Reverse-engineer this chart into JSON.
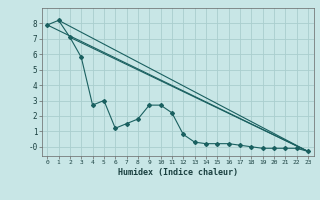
{
  "xlabel": "Humidex (Indice chaleur)",
  "ylabel": "",
  "background_color": "#c8e6e6",
  "grid_color": "#aacece",
  "line_color": "#1a6060",
  "xlim": [
    -0.5,
    23.5
  ],
  "ylim": [
    -0.6,
    9.0
  ],
  "yticks": [
    0,
    1,
    2,
    3,
    4,
    5,
    6,
    7,
    8
  ],
  "ytick_labels": [
    "-0",
    "1",
    "2",
    "3",
    "4",
    "5",
    "6",
    "7",
    "8"
  ],
  "xticks": [
    0,
    1,
    2,
    3,
    4,
    5,
    6,
    7,
    8,
    9,
    10,
    11,
    12,
    13,
    14,
    15,
    16,
    17,
    18,
    19,
    20,
    21,
    22,
    23
  ],
  "line1_x": [
    0,
    1,
    2,
    3,
    4,
    5,
    6,
    7,
    8,
    9,
    10,
    11,
    12,
    13,
    14,
    15,
    16,
    17,
    18,
    19,
    20,
    21,
    22,
    23
  ],
  "line1_y": [
    7.9,
    8.2,
    7.1,
    5.8,
    2.7,
    3.0,
    1.2,
    1.5,
    1.8,
    2.7,
    2.7,
    2.2,
    0.8,
    0.3,
    0.2,
    0.2,
    0.2,
    0.1,
    0.0,
    -0.1,
    -0.1,
    -0.1,
    -0.1,
    -0.3
  ],
  "line2_x": [
    0,
    23
  ],
  "line2_y": [
    7.9,
    -0.3
  ],
  "line3_x": [
    1,
    23
  ],
  "line3_y": [
    8.2,
    -0.3
  ],
  "line4_x": [
    2,
    23
  ],
  "line4_y": [
    7.1,
    -0.3
  ]
}
